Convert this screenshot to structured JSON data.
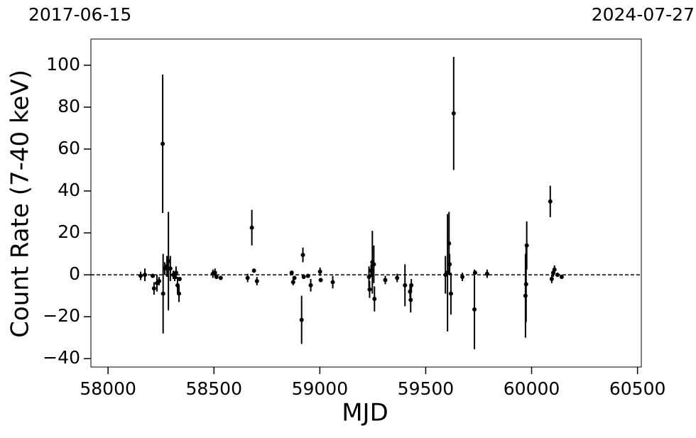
{
  "chart_data": {
    "type": "errorbar-scatter",
    "top_left_label": "2017-06-15",
    "top_right_label": "2024-07-27",
    "x_label": "MJD",
    "y_label": "Count Rate (7-40 keV)",
    "xlim": [
      57919,
      60518
    ],
    "ylim": [
      -44,
      112.5
    ],
    "xticks": [
      58000,
      58500,
      59000,
      59500,
      60000,
      60500
    ],
    "yticks": [
      {
        "value": -40,
        "label": "−40"
      },
      {
        "value": -20,
        "label": "−20"
      },
      0,
      20,
      40,
      60,
      80,
      100
    ],
    "reference_line": 0,
    "color": "#000000",
    "x": [
      58154,
      58174,
      58211,
      58217,
      58231,
      58241,
      58258,
      58260,
      58268,
      58278,
      58285,
      58294,
      58308,
      58315,
      58321,
      58328,
      58335,
      58338,
      58495,
      58505,
      58512,
      58532,
      58659,
      58679,
      58689,
      58703,
      58867,
      58874,
      58880,
      58914,
      58920,
      58924,
      58944,
      58957,
      59001,
      59004,
      59061,
      59232,
      59235,
      59242,
      59248,
      59255,
      59258,
      59309,
      59365,
      59402,
      59426,
      59429,
      59432,
      59593,
      59603,
      59610,
      59613,
      59619,
      59632,
      59673,
      59730,
      59733,
      59790,
      59971,
      59974,
      59977,
      60088,
      60095,
      60102,
      60108,
      60122,
      60142
    ],
    "values": [
      -0.5,
      0,
      -0.5,
      -6.5,
      -4,
      -3,
      62.5,
      -9,
      3,
      4,
      6.5,
      3,
      0,
      -1,
      1,
      -5,
      -9,
      -2,
      0.5,
      1,
      -1,
      -1.5,
      -1.5,
      22.5,
      2,
      -3,
      1,
      -3.5,
      -1.5,
      -21.5,
      9.5,
      -1,
      -0.5,
      -5,
      1.5,
      -2.5,
      -3.5,
      -1,
      -7,
      2,
      6,
      5,
      -11.5,
      -2.5,
      -1.5,
      -5,
      -8,
      -12,
      -5,
      0,
      1,
      15,
      5,
      -9,
      77,
      -1,
      -16.5,
      1,
      0.5,
      -10,
      -4.5,
      14,
      35,
      -2,
      1,
      2.5,
      0,
      -1
    ],
    "errors": [
      2,
      3,
      1,
      3,
      4,
      2,
      33,
      19,
      3,
      5,
      23.5,
      6,
      2,
      2,
      3,
      4,
      4,
      1,
      2,
      2,
      1,
      1,
      2,
      8.5,
      1,
      2,
      1,
      1.5,
      1,
      11.5,
      3.5,
      1,
      1,
      3,
      2,
      1,
      3,
      5,
      4,
      3,
      15,
      9,
      6,
      2,
      2,
      10,
      3,
      6,
      3,
      9,
      28,
      15,
      5,
      10,
      27,
      2,
      19,
      1,
      2,
      20,
      18,
      11.5,
      7.5,
      2,
      2,
      2,
      1,
      1
    ]
  }
}
